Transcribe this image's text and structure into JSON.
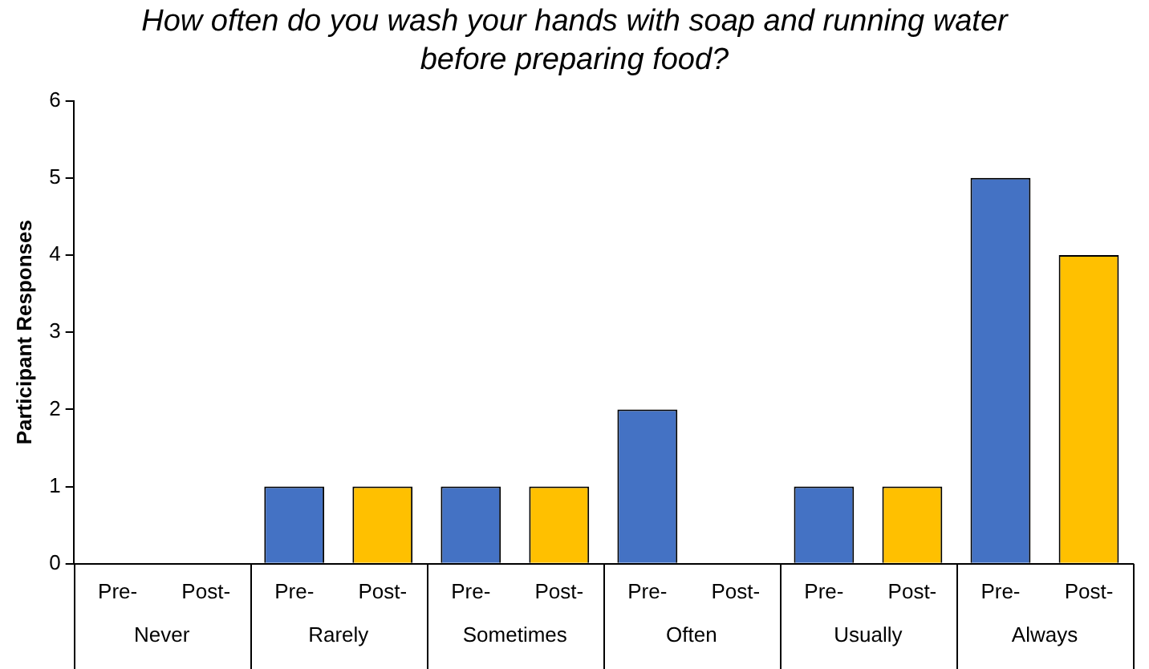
{
  "chart_data": {
    "type": "bar",
    "title": "How often do you wash your hands with soap and running water before preparing food?",
    "ylabel": "Participant Responses",
    "categories": [
      "Pre-",
      "Post-",
      "Pre-",
      "Post-",
      "Pre-",
      "Post-",
      "Pre-",
      "Post-",
      "Pre-",
      "Post-",
      "Pre-",
      "Post-"
    ],
    "values": [
      0,
      0,
      1,
      1,
      1,
      1,
      2,
      0,
      1,
      1,
      5,
      4
    ],
    "colors": [
      "#4472c4",
      "#ffc000",
      "#4472c4",
      "#ffc000",
      "#4472c4",
      "#ffc000",
      "#4472c4",
      "#ffc000",
      "#4472c4",
      "#ffc000",
      "#4472c4",
      "#ffc000"
    ],
    "annotations": [
      "Never",
      "Rarely",
      "Sometimes",
      "Often",
      "Usually",
      "Always"
    ],
    "ylim": [
      0,
      6
    ],
    "yticks": [
      0,
      1,
      2,
      3,
      4,
      5,
      6
    ],
    "grid": false,
    "legend": false
  }
}
